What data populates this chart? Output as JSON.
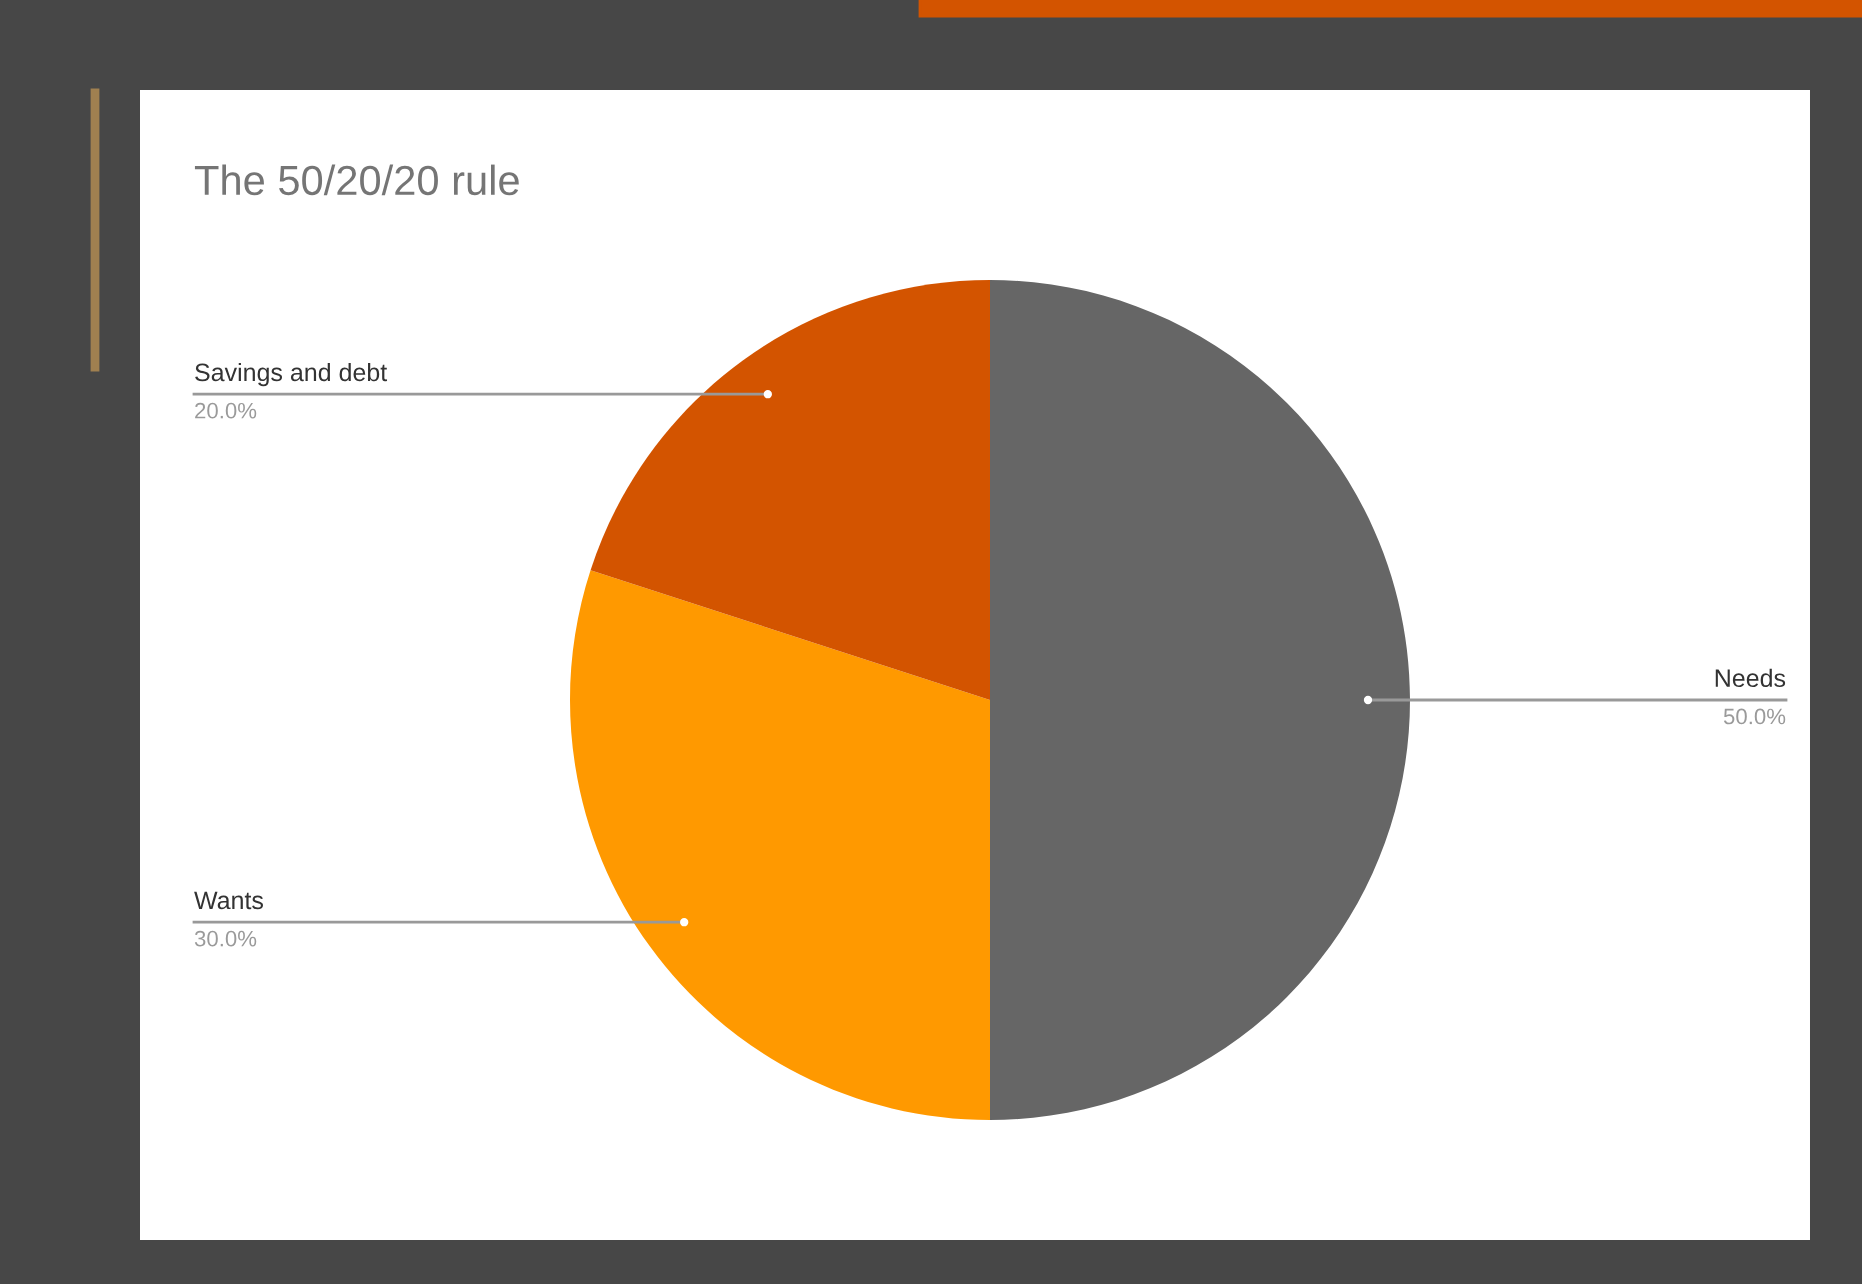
{
  "chart_data": {
    "type": "pie",
    "title": "The 50/20/20 rule",
    "categories": [
      "Needs",
      "Wants",
      "Savings and debt"
    ],
    "values": [
      50,
      30,
      20
    ],
    "colors": [
      "#666666",
      "#ff9900",
      "#d35400"
    ],
    "value_labels": [
      "50.0%",
      "30.0%",
      "20.0%"
    ]
  }
}
